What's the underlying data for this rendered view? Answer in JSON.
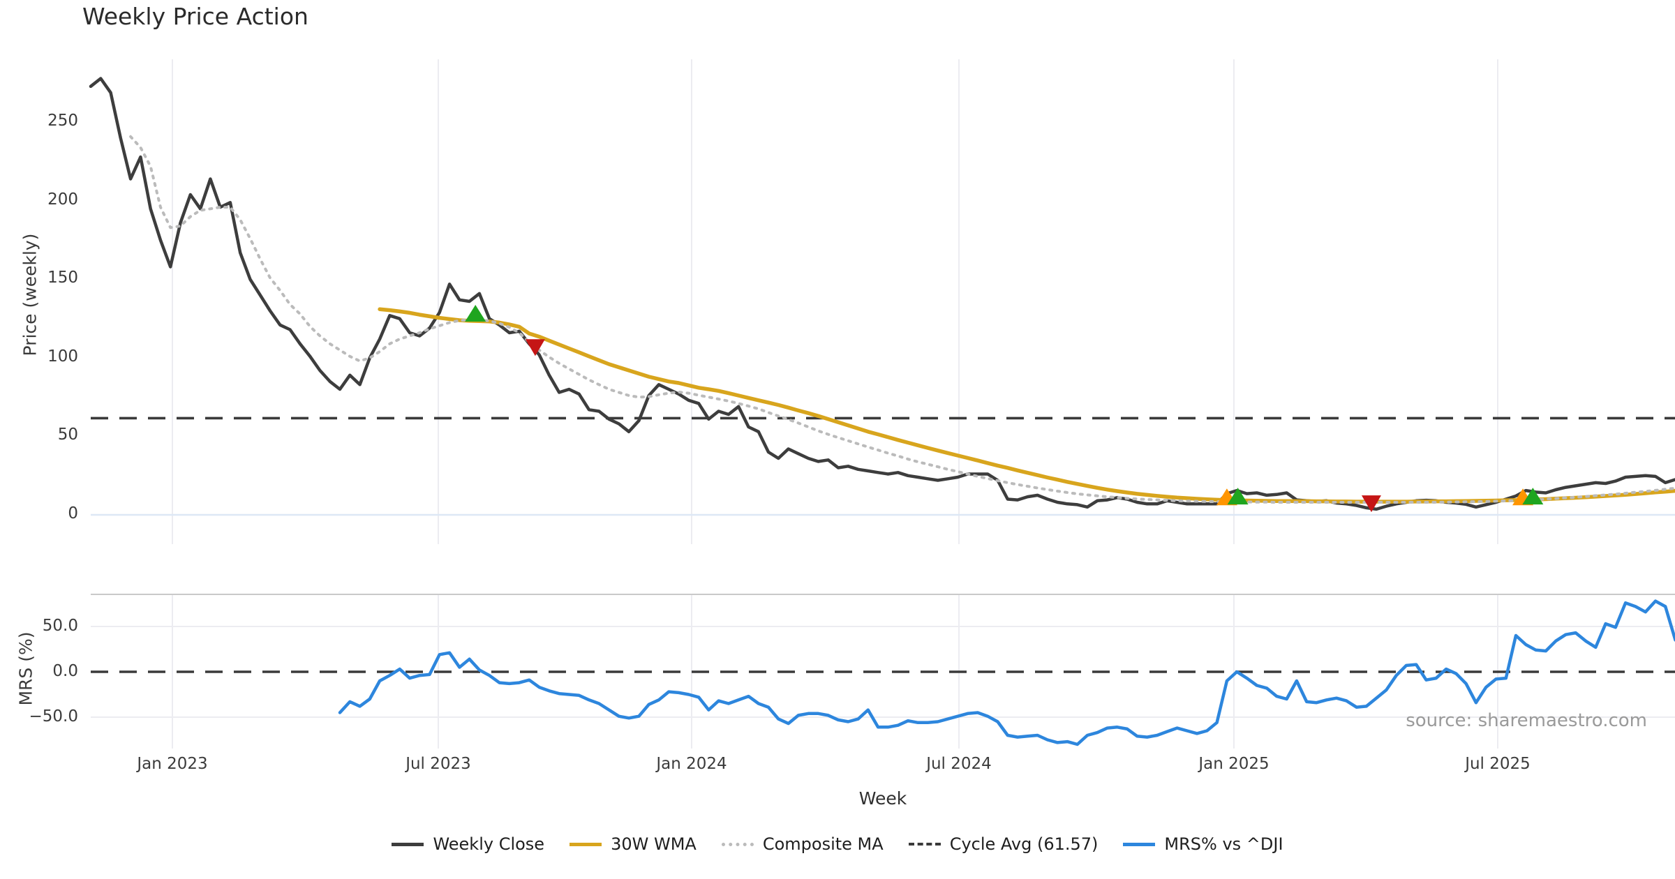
{
  "source_credit": "source: sharemaestro.com",
  "colors": {
    "weekly_close": "#3d3d3d",
    "wma_30w": "#d8a51d",
    "composite_ma": "#bbbbbb",
    "cycle_avg": "#3a3a3a",
    "mrs": "#2d86dd",
    "buy_marker": "#1fa51f",
    "accumulate_marker": "#ff9500",
    "sell_marker": "#c51515",
    "gridline": "#ececf1",
    "zero_gridline_top": "#dde8f5",
    "panel_border": "#c9c9c9"
  },
  "chart_data": {
    "type": "line",
    "title": "Weekly Price Action",
    "xlabel": "Week",
    "ylabel_top": "Price (weekly)",
    "ylabel_bottom": "MRS (%)",
    "x_tick_labels": [
      "Jan 2023",
      "Jul 2023",
      "Jan 2024",
      "Jul 2024",
      "Jan 2025",
      "Jul 2025"
    ],
    "price_tick_labels": [
      "250",
      "200",
      "150",
      "100",
      "50",
      "0"
    ],
    "price_tick_values": [
      250,
      200,
      150,
      100,
      50,
      0
    ],
    "mrs_tick_labels": [
      "50.0",
      "0.0",
      "−50.0"
    ],
    "mrs_tick_values": [
      50,
      0,
      -50
    ],
    "cycle_avg_value": 61.57,
    "ylim_top": [
      -20,
      290
    ],
    "ylim_bottom": [
      -85,
      87
    ],
    "grid": "vertical-on-month-ticks",
    "legend_position": "bottom-center",
    "legend": [
      {
        "label": "Weekly Close",
        "swatch": "solid",
        "color": "#3d3d3d"
      },
      {
        "label": "30W WMA",
        "swatch": "solid",
        "color": "#d8a51d"
      },
      {
        "label": "Composite MA",
        "swatch": "dotted",
        "color": "#bbbbbb"
      },
      {
        "label": "Cycle Avg (61.57)",
        "swatch": "dashed",
        "color": "#3a3a3a"
      },
      {
        "label": "MRS% vs ^DJI",
        "swatch": "solid",
        "color": "#2d86dd"
      }
    ],
    "series": [
      {
        "name": "Weekly Close",
        "panel": "top",
        "color": "#3d3d3d",
        "width": 4.5,
        "dash": null,
        "start_week": 0,
        "values": [
          273,
          278,
          269,
          240,
          214,
          228,
          195,
          175,
          158,
          186,
          204,
          195,
          214,
          196,
          199,
          167,
          150,
          140,
          130,
          121,
          118,
          109,
          101,
          92,
          85,
          80,
          89,
          83,
          100,
          112,
          127,
          125,
          116,
          114,
          119,
          129,
          147,
          137,
          136,
          141,
          125,
          121,
          116,
          117,
          109,
          102,
          89,
          78,
          80,
          77,
          67,
          66,
          61,
          58,
          53,
          60,
          76,
          83,
          80,
          77,
          73,
          71,
          61,
          66,
          64,
          69,
          56,
          53,
          40,
          36,
          42,
          39,
          36,
          34,
          35,
          30,
          31,
          29,
          28,
          27,
          26,
          27,
          25,
          24,
          23,
          22,
          23,
          24,
          26,
          26,
          26,
          22,
          10,
          9.5,
          11.5,
          12.5,
          10,
          8,
          7,
          6.5,
          5,
          9,
          9.5,
          11,
          10,
          8,
          7,
          7,
          9,
          8,
          7,
          7,
          7,
          7,
          13.5,
          15.5,
          13.5,
          14,
          12.5,
          13,
          14,
          9.5,
          9,
          8.5,
          9,
          7.5,
          7,
          6,
          4.5,
          3.6,
          5.5,
          7,
          8,
          9,
          9.3,
          9,
          8,
          7.5,
          6.7,
          5,
          6.5,
          8,
          10,
          12,
          15.5,
          14.5,
          14,
          16,
          17.5,
          18.5,
          19.5,
          20.5,
          20,
          21.5,
          24,
          24.5,
          25,
          24.5,
          20.5,
          22.5
        ]
      },
      {
        "name": "30W WMA",
        "panel": "top",
        "color": "#d8a51d",
        "width": 5.5,
        "dash": null,
        "start_week": 29,
        "values": [
          131,
          130.4,
          129.6,
          128.7,
          127.5,
          126.5,
          125.5,
          124.7,
          124,
          123.6,
          123.4,
          123.2,
          122.5,
          121.3,
          119.8,
          115.5,
          113.5,
          111,
          108.5,
          106,
          103.5,
          101,
          98.5,
          96,
          94,
          92,
          90,
          88,
          86.5,
          85,
          84,
          82.5,
          81,
          80,
          79,
          77.5,
          76,
          74.5,
          73,
          71.5,
          70,
          68.3,
          66.5,
          64.8,
          63,
          61,
          59,
          57,
          55,
          53,
          51.3,
          49.5,
          47.7,
          46,
          44.3,
          42.6,
          41,
          39.4,
          37.8,
          36.2,
          34.6,
          33,
          31.4,
          29.9,
          28.3,
          26.8,
          25.3,
          23.8,
          22.4,
          21,
          19.7,
          18.4,
          17.2,
          16.1,
          15.1,
          14.2,
          13.4,
          12.7,
          12.1,
          11.5,
          11,
          10.6,
          10.2,
          9.9,
          9.6,
          9.4,
          9.2,
          9.1,
          9,
          8.9,
          8.8,
          8.8,
          8.7,
          8.7,
          8.6,
          8.6,
          8.5,
          8.5,
          8.4,
          8.4,
          8.4,
          8.4,
          8.4,
          8.4,
          8.5,
          8.5,
          8.6,
          8.6,
          8.7,
          8.8,
          8.9,
          9,
          9.1,
          9.3,
          9.4,
          9.6,
          9.8,
          10,
          10.3,
          10.6,
          10.9,
          11.2,
          11.6,
          12,
          12.4,
          12.8,
          13.3,
          13.8,
          14.3,
          14.8,
          15.3
        ]
      },
      {
        "name": "Composite MA",
        "panel": "top",
        "color": "#bbbbbb",
        "width": 4,
        "dash": "3 8",
        "start_week": 4,
        "values": [
          241,
          234,
          222,
          196,
          183,
          184,
          190,
          194,
          195,
          196,
          196,
          188,
          176,
          163,
          151,
          143,
          134,
          128,
          120,
          114,
          109,
          105,
          101,
          98,
          100,
          104,
          109,
          112,
          114,
          116,
          118.5,
          120.5,
          122.5,
          123.8,
          124.3,
          124,
          123.6,
          122,
          119.5,
          116,
          110,
          105,
          100.5,
          96.5,
          93,
          89.5,
          86,
          83,
          80,
          78,
          76,
          75,
          75.3,
          76.5,
          77.5,
          78.2,
          77.5,
          76.2,
          75,
          73.8,
          72.5,
          71,
          69.3,
          67.5,
          65.2,
          63,
          60.8,
          58.5,
          56,
          53.5,
          51.3,
          49.2,
          47.2,
          45.2,
          43.2,
          41.3,
          39.3,
          37.5,
          35.5,
          33.8,
          32.2,
          30.6,
          29,
          27.5,
          26,
          24.5,
          23.1,
          21.8,
          20.5,
          19.3,
          18.2,
          17.1,
          16.1,
          15.1,
          14.2,
          13.4,
          12.7,
          12.1,
          11.5,
          11,
          10.5,
          10.1,
          9.8,
          9.5,
          9.2,
          9,
          8.8,
          8.6,
          8.5,
          8.4,
          8.3,
          8.2,
          8.2,
          8.1,
          8.1,
          8,
          8,
          8,
          8,
          8,
          8,
          8,
          8,
          8,
          8,
          8,
          8,
          8,
          8,
          8,
          8,
          8,
          8.1,
          8.2,
          8.3,
          8.4,
          8.5,
          8.7,
          8.9,
          9.1,
          9.4,
          9.7,
          10,
          10.4,
          10.8,
          11.2,
          11.7,
          12.2,
          12.7,
          13.2,
          13.8,
          14.4,
          15,
          15.6,
          16.3,
          17
        ]
      },
      {
        "name": "MRS% vs ^DJI",
        "panel": "bottom",
        "color": "#2d86dd",
        "width": 4.5,
        "dash": null,
        "start_week": 25,
        "values": [
          -45,
          -33,
          -38,
          -30,
          -10,
          -4,
          3,
          -7,
          -4,
          -3,
          19,
          21,
          5,
          14,
          2,
          -4,
          -12,
          -13,
          -12,
          -9,
          -17,
          -21,
          -24,
          -25,
          -26,
          -31,
          -35,
          -42,
          -49,
          -51,
          -49,
          -36,
          -31,
          -22,
          -23,
          -25,
          -28,
          -42,
          -32,
          -35,
          -31,
          -27,
          -35,
          -39,
          -52,
          -57,
          -48,
          -46,
          -46,
          -48,
          -53,
          -55,
          -52,
          -42,
          -61,
          -61,
          -59,
          -54,
          -56,
          -56,
          -55,
          -52,
          -49,
          -46,
          -45,
          -49,
          -55,
          -70,
          -72,
          -71,
          -70,
          -75,
          -78,
          -77,
          -80,
          -70,
          -67,
          -62,
          -61,
          -63,
          -71,
          -72,
          -70,
          -66,
          -62,
          -65,
          -68,
          -65,
          -56,
          -10,
          0,
          -7,
          -15,
          -18,
          -27,
          -30,
          -10,
          -33,
          -34,
          -31,
          -29,
          -32,
          -39,
          -38,
          -29,
          -20,
          -4,
          7,
          8,
          -9,
          -7,
          3,
          -2,
          -13,
          -34,
          -17,
          -8,
          -7,
          40,
          30,
          24,
          23,
          34,
          41,
          43,
          34,
          27,
          53,
          49,
          76,
          72,
          66,
          78,
          72,
          35
        ]
      }
    ],
    "markers": [
      {
        "signal": "buy",
        "shape": "triangle-up",
        "color": "#1fa51f",
        "week": 38.6,
        "price": 128
      },
      {
        "signal": "sell",
        "shape": "triangle-down",
        "color": "#c51515",
        "week": 44.6,
        "price": 107
      },
      {
        "signal": "accumulate",
        "shape": "triangle-up",
        "color": "#ff9500",
        "week": 114.0,
        "price": 11
      },
      {
        "signal": "buy",
        "shape": "triangle-up",
        "color": "#1fa51f",
        "week": 115.1,
        "price": 11.5
      },
      {
        "signal": "sell",
        "shape": "triangle-down",
        "color": "#c51515",
        "week": 128.5,
        "price": 7.5
      },
      {
        "signal": "accumulate",
        "shape": "triangle-up",
        "color": "#ff9500",
        "week": 143.7,
        "price": 11
      },
      {
        "signal": "buy",
        "shape": "triangle-up",
        "color": "#1fa51f",
        "week": 144.7,
        "price": 11.5
      }
    ]
  }
}
